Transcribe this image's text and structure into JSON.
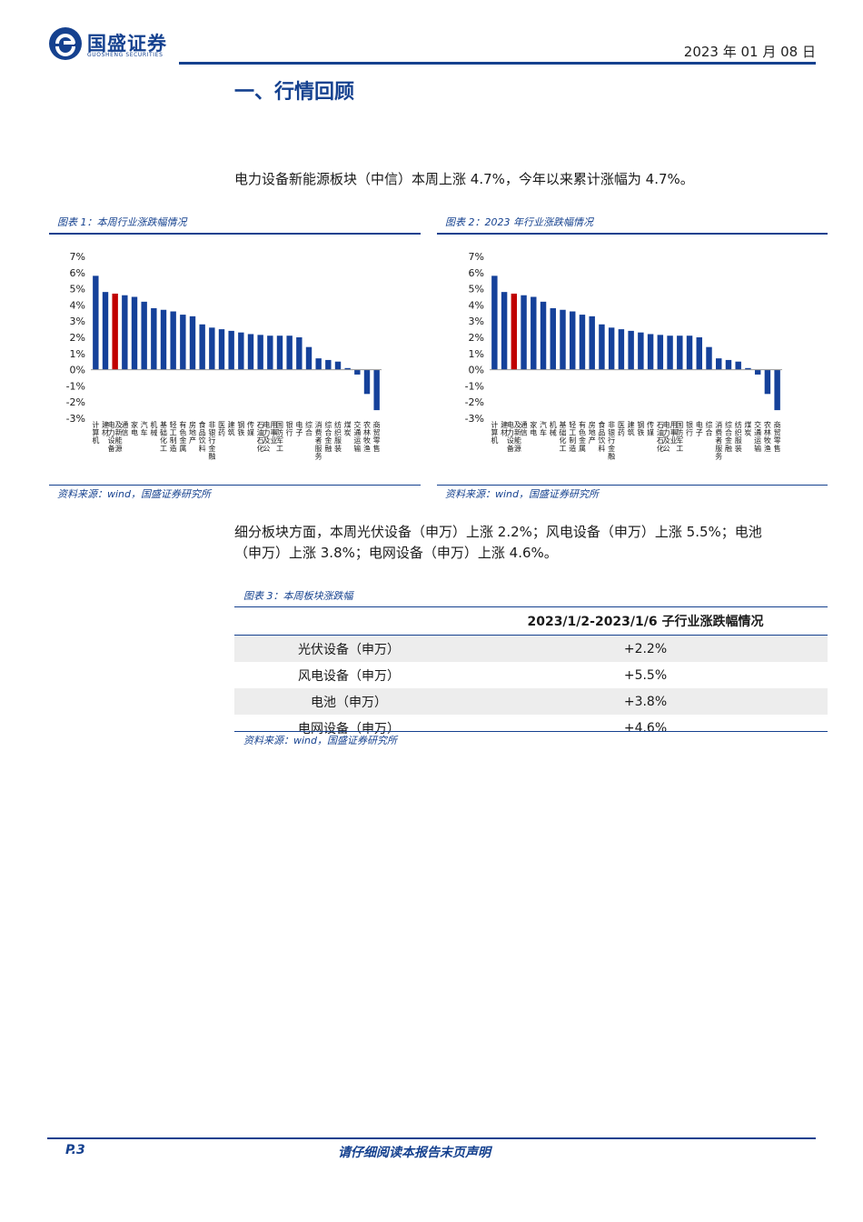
{
  "header": {
    "brand_name": "国盛证券",
    "brand_sub": "GUOSHENG SECURITIES",
    "date": "2023 年 01 月 08 日"
  },
  "section_title": "一、行情回顾",
  "para1": "电力设备新能源板块（中信）本周上涨 4.7%，今年以来累计涨幅为 4.7%。",
  "figure1": {
    "caption": "图表 1：本周行业涨跌幅情况",
    "source": "资料来源：wind，国盛证券研究所"
  },
  "figure2": {
    "caption": "图表 2：2023 年行业涨跌幅情况",
    "source": "资料来源：wind，国盛证券研究所"
  },
  "para2_line1": "细分板块方面，本周光伏设备（申万）上涨 2.2%；风电设备（申万）上涨 5.5%；电池",
  "para2_line2": "（申万）上涨 3.8%；电网设备（申万）上涨 4.6%。",
  "table3": {
    "caption": "图表 3：本周板块涨跌幅",
    "header": [
      "",
      "2023/1/2-2023/1/6 子行业涨跌幅情况"
    ],
    "rows": [
      [
        "光伏设备（申万）",
        "+2.2%"
      ],
      [
        "风电设备（申万）",
        "+5.5%"
      ],
      [
        "电池（申万）",
        "+3.8%"
      ],
      [
        "电网设备（申万）",
        "+4.6%"
      ]
    ],
    "source": "资料来源：wind，国盛证券研究所"
  },
  "colors": {
    "bar": "#15419a",
    "highlight": "#c00000",
    "brand": "#15418f"
  },
  "chart_data": [
    {
      "type": "bar",
      "title": "本周行业涨跌幅情况",
      "ylim": [
        -3,
        7
      ],
      "yticks": [
        "7%",
        "6%",
        "5%",
        "4%",
        "3%",
        "2%",
        "1%",
        "0%",
        "-1%",
        "-2%",
        "-3%"
      ],
      "highlight_category": "电力设备及新能源",
      "categories": [
        "计算机",
        "建材",
        "电力设备及新能源",
        "通信",
        "家电",
        "汽车",
        "机械",
        "基础化工",
        "轻工制造",
        "有色金属",
        "房地产",
        "食品饮料",
        "非银行金融",
        "医药",
        "建筑",
        "钢铁",
        "传媒",
        "石油石化",
        "电力及公用事业",
        "国防军工",
        "银行",
        "电子",
        "综合",
        "消费者服务",
        "综合金融",
        "纺织服装",
        "煤炭",
        "交通运输",
        "农林牧渔",
        "商贸零售"
      ],
      "values": [
        5.8,
        4.8,
        4.7,
        4.6,
        4.5,
        4.2,
        3.8,
        3.7,
        3.6,
        3.4,
        3.3,
        2.8,
        2.6,
        2.5,
        2.4,
        2.3,
        2.2,
        2.15,
        2.1,
        2.1,
        2.1,
        2.0,
        1.4,
        0.7,
        0.6,
        0.5,
        0.1,
        -0.3,
        -1.5,
        -2.5
      ]
    },
    {
      "type": "bar",
      "title": "2023 年行业涨跌幅情况",
      "ylim": [
        -3,
        7
      ],
      "yticks": [
        "7%",
        "6%",
        "5%",
        "4%",
        "3%",
        "2%",
        "1%",
        "0%",
        "-1%",
        "-2%",
        "-3%"
      ],
      "highlight_category": "电力设备及新能源",
      "categories": [
        "计算机",
        "建材",
        "电力设备及新能源",
        "通信",
        "家电",
        "汽车",
        "机械",
        "基础化工",
        "轻工制造",
        "有色金属",
        "房地产",
        "食品饮料",
        "非银行金融",
        "医药",
        "建筑",
        "钢铁",
        "传媒",
        "石油石化",
        "电力及公用事业",
        "国防军工",
        "银行",
        "电子",
        "综合",
        "消费者服务",
        "综合金融",
        "纺织服装",
        "煤炭",
        "交通运输",
        "农林牧渔",
        "商贸零售"
      ],
      "values": [
        5.8,
        4.8,
        4.7,
        4.6,
        4.5,
        4.2,
        3.8,
        3.7,
        3.6,
        3.4,
        3.3,
        2.8,
        2.6,
        2.5,
        2.4,
        2.3,
        2.2,
        2.15,
        2.1,
        2.1,
        2.1,
        2.0,
        1.4,
        0.7,
        0.6,
        0.5,
        0.1,
        -0.3,
        -1.5,
        -2.5
      ]
    }
  ],
  "footer": {
    "page": "P.3",
    "note": "请仔细阅读本报告末页声明"
  }
}
